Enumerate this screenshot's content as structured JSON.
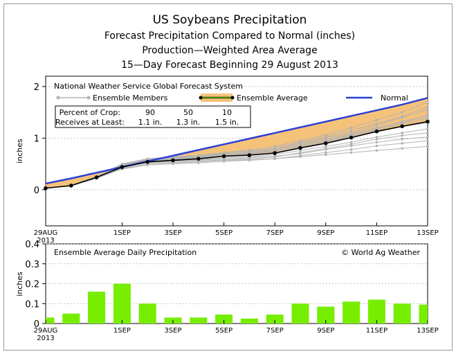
{
  "titles": [
    "US Soybeans Precipitation",
    "Forecast Precipitation Compared to Normal (inches)",
    "Production—Weighted Area Average",
    "15—Day Forecast Beginning 29 August 2013"
  ],
  "top_panel": {
    "label": "National Weather Service Global Forecast System",
    "legend": {
      "members": "Ensemble Members",
      "average": "Ensemble Average",
      "normal": "Normal"
    },
    "table": {
      "row1_label": "Percent of Crop:",
      "row1_values": [
        "90",
        "50",
        "10"
      ],
      "row2_label": "Receives at Least:",
      "row2_values": [
        "1.1 in.",
        "1.3 in.",
        "1.5 in."
      ]
    }
  },
  "bottom_panel": {
    "label": "Ensemble Average Daily Precipitation",
    "credit": "© World Ag Weather"
  },
  "x_ticks": [
    "29AUG",
    "1SEP",
    "3SEP",
    "5SEP",
    "7SEP",
    "9SEP",
    "11SEP",
    "13SEP"
  ],
  "x_tick_days": [
    0,
    3,
    5,
    7,
    9,
    11,
    13,
    15
  ],
  "x_year": "2013",
  "colors": {
    "normal": "#2b3fd6",
    "band": "#f5c27a",
    "average_legend": "#66dd00",
    "bars": "#77ee00",
    "members": "#b3b3b3"
  },
  "chart_data": [
    {
      "type": "line",
      "title": "Forecast Precipitation Compared to Normal (inches)",
      "ylabel": "inches",
      "ylim": [
        -0.7,
        2.2
      ],
      "yticks": [
        0,
        1,
        2
      ],
      "x": [
        "29AUG",
        "30AUG",
        "31AUG",
        "1SEP",
        "2SEP",
        "3SEP",
        "4SEP",
        "5SEP",
        "6SEP",
        "7SEP",
        "8SEP",
        "9SEP",
        "10SEP",
        "11SEP",
        "12SEP",
        "13SEP"
      ],
      "series": [
        {
          "name": "Normal",
          "values": [
            0.12,
            0.22,
            0.33,
            0.44,
            0.55,
            0.66,
            0.77,
            0.88,
            0.99,
            1.1,
            1.21,
            1.32,
            1.43,
            1.54,
            1.65,
            1.78
          ]
        },
        {
          "name": "Ensemble Average",
          "values": [
            0.03,
            0.08,
            0.24,
            0.44,
            0.54,
            0.57,
            0.6,
            0.65,
            0.67,
            0.71,
            0.81,
            0.9,
            1.01,
            1.13,
            1.23,
            1.32
          ]
        }
      ],
      "band": {
        "low": [
          0.03,
          0.08,
          0.24,
          0.44,
          0.54,
          0.57,
          0.6,
          0.65,
          0.67,
          0.71,
          0.81,
          0.9,
          1.01,
          1.13,
          1.23,
          1.32
        ],
        "high": [
          0.12,
          0.22,
          0.33,
          0.44,
          0.55,
          0.66,
          0.77,
          0.88,
          0.99,
          1.1,
          1.21,
          1.32,
          1.43,
          1.54,
          1.65,
          1.78
        ]
      },
      "members": [
        [
          0.03,
          0.08,
          0.24,
          0.48,
          0.58,
          0.62,
          0.64,
          0.7,
          0.75,
          0.8,
          0.9,
          1.0,
          1.1,
          1.25,
          1.4,
          1.55
        ],
        [
          0.03,
          0.08,
          0.22,
          0.42,
          0.5,
          0.53,
          0.55,
          0.58,
          0.6,
          0.63,
          0.72,
          0.8,
          0.88,
          0.98,
          1.05,
          1.1
        ],
        [
          0.03,
          0.08,
          0.25,
          0.46,
          0.56,
          0.6,
          0.63,
          0.68,
          0.72,
          0.78,
          0.88,
          0.97,
          1.08,
          1.2,
          1.32,
          1.45
        ],
        [
          0.03,
          0.08,
          0.23,
          0.4,
          0.48,
          0.5,
          0.52,
          0.55,
          0.57,
          0.6,
          0.66,
          0.72,
          0.78,
          0.85,
          0.9,
          0.95
        ],
        [
          0.03,
          0.08,
          0.24,
          0.45,
          0.55,
          0.58,
          0.62,
          0.66,
          0.7,
          0.74,
          0.84,
          0.94,
          1.04,
          1.15,
          1.28,
          1.38
        ],
        [
          0.03,
          0.08,
          0.26,
          0.5,
          0.6,
          0.64,
          0.67,
          0.72,
          0.77,
          0.84,
          0.95,
          1.06,
          1.2,
          1.35,
          1.5,
          1.7
        ],
        [
          0.03,
          0.08,
          0.22,
          0.41,
          0.5,
          0.52,
          0.54,
          0.57,
          0.58,
          0.6,
          0.64,
          0.68,
          0.72,
          0.76,
          0.8,
          0.84
        ],
        [
          0.03,
          0.08,
          0.25,
          0.47,
          0.57,
          0.61,
          0.64,
          0.68,
          0.71,
          0.76,
          0.86,
          0.95,
          1.06,
          1.18,
          1.3,
          1.42
        ],
        [
          0.03,
          0.08,
          0.24,
          0.43,
          0.53,
          0.56,
          0.58,
          0.62,
          0.64,
          0.68,
          0.76,
          0.84,
          0.92,
          1.02,
          1.1,
          1.18
        ],
        [
          0.03,
          0.08,
          0.25,
          0.49,
          0.59,
          0.63,
          0.66,
          0.71,
          0.74,
          0.8,
          0.92,
          1.02,
          1.15,
          1.28,
          1.42,
          1.6
        ],
        [
          0.03,
          0.08,
          0.23,
          0.44,
          0.52,
          0.55,
          0.57,
          0.6,
          0.62,
          0.65,
          0.7,
          0.78,
          0.85,
          0.92,
          0.98,
          1.02
        ],
        [
          0.03,
          0.08,
          0.24,
          0.46,
          0.55,
          0.59,
          0.61,
          0.65,
          0.68,
          0.72,
          0.82,
          0.92,
          1.02,
          1.12,
          1.22,
          1.3
        ]
      ]
    },
    {
      "type": "bar",
      "title": "Ensemble Average Daily Precipitation",
      "ylabel": "inches",
      "ylim": [
        0,
        0.4
      ],
      "yticks": [
        0,
        0.1,
        0.2,
        0.3,
        0.4
      ],
      "categories": [
        "29AUG",
        "30AUG",
        "31AUG",
        "1SEP",
        "2SEP",
        "3SEP",
        "4SEP",
        "5SEP",
        "6SEP",
        "7SEP",
        "8SEP",
        "9SEP",
        "10SEP",
        "11SEP",
        "12SEP",
        "13SEP"
      ],
      "values": [
        0.03,
        0.05,
        0.16,
        0.2,
        0.1,
        0.03,
        0.03,
        0.045,
        0.025,
        0.045,
        0.1,
        0.085,
        0.11,
        0.12,
        0.1,
        0.095
      ]
    }
  ]
}
